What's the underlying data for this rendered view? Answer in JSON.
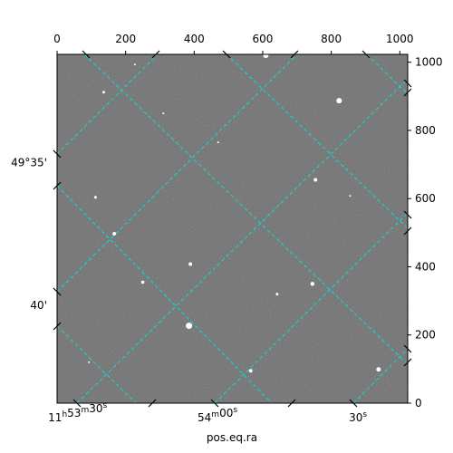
{
  "chart_data": {
    "type": "image",
    "title": "",
    "colors": {
      "background_gray": "#6e6e6e",
      "grid": "#00e0e0",
      "frame": "#000000"
    },
    "pixel_axes": {
      "x_range": [
        0,
        1023
      ],
      "y_range": [
        0,
        1023
      ],
      "x_ticks": [
        0,
        200,
        400,
        600,
        800,
        1000
      ],
      "y_ticks": [
        0,
        200,
        400,
        600,
        800,
        1000
      ]
    },
    "world_axes": {
      "xlabel": "pos.eq.ra",
      "ra_ticks": [
        {
          "x": 60,
          "h": "11",
          "m": "53",
          "s": "30",
          "label_h": "11",
          "label_m": "53",
          "label_s": "30"
        },
        {
          "x": 468,
          "h": "",
          "m": "54",
          "s": "00",
          "label_h": "",
          "label_m": "54",
          "label_s": "00"
        },
        {
          "x": 878,
          "h": "",
          "m": "",
          "s": "30",
          "label_h": "",
          "label_m": "",
          "label_s": "30"
        }
      ],
      "dec_ticks": [
        {
          "y": 705,
          "label": "49°35'"
        },
        {
          "y": 287,
          "label": "40'"
        }
      ]
    },
    "stars": [
      {
        "x": 609,
        "y": 1020,
        "r": 3
      },
      {
        "x": 823,
        "y": 887,
        "r": 3
      },
      {
        "x": 136,
        "y": 912,
        "r": 1.5
      },
      {
        "x": 227,
        "y": 993,
        "r": 1
      },
      {
        "x": 754,
        "y": 655,
        "r": 2
      },
      {
        "x": 112,
        "y": 604,
        "r": 1.5
      },
      {
        "x": 167,
        "y": 497,
        "r": 2
      },
      {
        "x": 389,
        "y": 408,
        "r": 2
      },
      {
        "x": 250,
        "y": 355,
        "r": 1.8
      },
      {
        "x": 745,
        "y": 350,
        "r": 2.2
      },
      {
        "x": 642,
        "y": 320,
        "r": 1.5
      },
      {
        "x": 385,
        "y": 227,
        "r": 3.5
      },
      {
        "x": 565,
        "y": 95,
        "r": 2
      },
      {
        "x": 938,
        "y": 99,
        "r": 2.5
      },
      {
        "x": 855,
        "y": 608,
        "r": 1
      },
      {
        "x": 310,
        "y": 850,
        "r": 1
      },
      {
        "x": 470,
        "y": 765,
        "r": 1
      },
      {
        "x": 93,
        "y": 120,
        "r": 1
      }
    ]
  }
}
